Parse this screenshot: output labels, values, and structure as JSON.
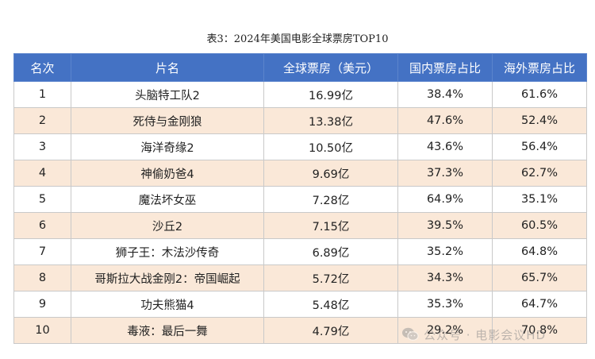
{
  "caption": "表3：2024年美国电影全球票房TOP10",
  "table": {
    "headers": [
      "名次",
      "片名",
      "全球票房（美元）",
      "国内票房占比",
      "海外票房占比"
    ],
    "rows": [
      {
        "rank": "1",
        "title": "头脑特工队2",
        "gross": "16.99亿",
        "domestic": "38.4%",
        "overseas": "61.6%"
      },
      {
        "rank": "2",
        "title": "死侍与金刚狼",
        "gross": "13.38亿",
        "domestic": "47.6%",
        "overseas": "52.4%"
      },
      {
        "rank": "3",
        "title": "海洋奇缘2",
        "gross": "10.50亿",
        "domestic": "43.6%",
        "overseas": "56.4%"
      },
      {
        "rank": "4",
        "title": "神偷奶爸4",
        "gross": "9.69亿",
        "domestic": "37.3%",
        "overseas": "62.7%"
      },
      {
        "rank": "5",
        "title": "魔法坏女巫",
        "gross": "7.28亿",
        "domestic": "64.9%",
        "overseas": "35.1%"
      },
      {
        "rank": "6",
        "title": "沙丘2",
        "gross": "7.15亿",
        "domestic": "39.5%",
        "overseas": "60.5%"
      },
      {
        "rank": "7",
        "title": "狮子王：木法沙传奇",
        "gross": "6.89亿",
        "domestic": "35.2%",
        "overseas": "64.8%"
      },
      {
        "rank": "8",
        "title": "哥斯拉大战金刚2：帝国崛起",
        "gross": "5.72亿",
        "domestic": "34.3%",
        "overseas": "65.7%"
      },
      {
        "rank": "9",
        "title": "功夫熊猫4",
        "gross": "5.48亿",
        "domestic": "35.3%",
        "overseas": "64.7%"
      },
      {
        "rank": "10",
        "title": "毒液：最后一舞",
        "gross": "4.79亿",
        "domestic": "29.2%",
        "overseas": "70.8%"
      }
    ]
  },
  "watermark": {
    "text": "公众号 · 电影会议HD",
    "icon": "wechat-icon"
  },
  "colors": {
    "header_bg": "#4472c4",
    "header_text": "#ffffff",
    "alt_row_bg": "#fae8d8",
    "border": "#c9c9c9"
  }
}
